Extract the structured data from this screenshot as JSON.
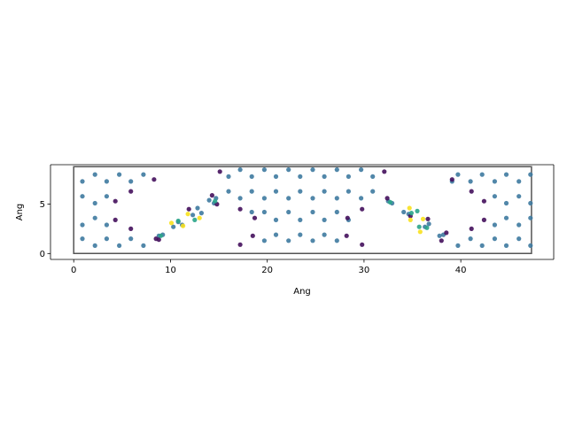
{
  "chart_data": {
    "type": "scatter",
    "title": "",
    "xlabel": "Ang",
    "ylabel": "Ang",
    "xlim": [
      -2.4,
      49.6
    ],
    "ylim": [
      -0.6,
      9.0
    ],
    "x_ticks": [
      0,
      10,
      20,
      30,
      40
    ],
    "y_ticks": [
      0,
      5
    ],
    "grid": false,
    "cell_outline": {
      "corners": [
        [
          0,
          0
        ],
        [
          0,
          8.8
        ],
        [
          47.3,
          8.8
        ],
        [
          47.3,
          0
        ]
      ],
      "color": "#555555"
    },
    "colors": {
      "blue": "#3e7aa0",
      "purple": "#440f5c",
      "teal": "#2aa58a",
      "yellow": "#f8e11e",
      "axis": "#000000"
    },
    "series": [
      {
        "color_key": "blue",
        "points": [
          [
            0.9,
            1.5
          ],
          [
            0.9,
            2.9
          ],
          [
            0.9,
            5.8
          ],
          [
            0.9,
            7.3
          ],
          [
            2.2,
            0.8
          ],
          [
            2.2,
            3.6
          ],
          [
            2.2,
            5.1
          ],
          [
            2.2,
            8.0
          ],
          [
            3.4,
            1.5
          ],
          [
            3.4,
            2.9
          ],
          [
            3.4,
            5.8
          ],
          [
            3.4,
            7.3
          ],
          [
            4.7,
            0.8
          ],
          [
            4.7,
            8.0
          ],
          [
            5.9,
            1.5
          ],
          [
            5.9,
            7.3
          ],
          [
            7.2,
            0.8
          ],
          [
            7.2,
            8.0
          ],
          [
            8.8,
            1.8
          ],
          [
            9.2,
            1.9
          ],
          [
            10.3,
            2.7
          ],
          [
            10.8,
            3.2
          ],
          [
            11.2,
            2.9
          ],
          [
            12.3,
            3.9
          ],
          [
            12.8,
            4.6
          ],
          [
            13.2,
            4.1
          ],
          [
            14.0,
            5.4
          ],
          [
            14.5,
            5.1
          ],
          [
            14.7,
            5.6
          ],
          [
            16.0,
            6.3
          ],
          [
            16.0,
            7.8
          ],
          [
            17.2,
            5.6
          ],
          [
            17.2,
            8.5
          ],
          [
            18.4,
            4.2
          ],
          [
            18.4,
            6.3
          ],
          [
            18.4,
            7.8
          ],
          [
            19.7,
            1.3
          ],
          [
            19.7,
            4.2
          ],
          [
            19.7,
            5.6
          ],
          [
            19.7,
            8.5
          ],
          [
            20.9,
            1.9
          ],
          [
            20.9,
            3.4
          ],
          [
            20.9,
            6.3
          ],
          [
            20.9,
            7.8
          ],
          [
            22.2,
            1.3
          ],
          [
            22.2,
            4.2
          ],
          [
            22.2,
            5.6
          ],
          [
            22.2,
            8.5
          ],
          [
            23.4,
            1.9
          ],
          [
            23.4,
            3.4
          ],
          [
            23.4,
            6.3
          ],
          [
            23.4,
            7.8
          ],
          [
            24.7,
            1.3
          ],
          [
            24.7,
            4.2
          ],
          [
            24.7,
            5.6
          ],
          [
            24.7,
            8.5
          ],
          [
            25.9,
            1.9
          ],
          [
            25.9,
            3.4
          ],
          [
            25.9,
            6.3
          ],
          [
            25.9,
            7.8
          ],
          [
            27.2,
            1.3
          ],
          [
            27.2,
            4.2
          ],
          [
            27.2,
            5.6
          ],
          [
            27.2,
            8.5
          ],
          [
            28.4,
            3.4
          ],
          [
            28.4,
            6.3
          ],
          [
            28.4,
            7.8
          ],
          [
            29.7,
            5.6
          ],
          [
            29.7,
            8.5
          ],
          [
            30.9,
            6.3
          ],
          [
            30.9,
            7.8
          ],
          [
            32.5,
            5.3
          ],
          [
            32.9,
            5.1
          ],
          [
            34.1,
            4.2
          ],
          [
            34.6,
            4.0
          ],
          [
            36.3,
            2.7
          ],
          [
            36.7,
            3.0
          ],
          [
            37.8,
            1.8
          ],
          [
            38.2,
            1.9
          ],
          [
            39.1,
            7.3
          ],
          [
            39.7,
            0.8
          ],
          [
            39.7,
            8.0
          ],
          [
            41.0,
            1.5
          ],
          [
            41.0,
            7.3
          ],
          [
            42.2,
            0.8
          ],
          [
            42.2,
            8.0
          ],
          [
            43.5,
            1.5
          ],
          [
            43.5,
            2.9
          ],
          [
            43.5,
            5.8
          ],
          [
            43.5,
            7.3
          ],
          [
            44.7,
            0.8
          ],
          [
            44.7,
            3.6
          ],
          [
            44.7,
            5.1
          ],
          [
            44.7,
            8.0
          ],
          [
            46.0,
            1.5
          ],
          [
            46.0,
            2.9
          ],
          [
            46.0,
            5.8
          ],
          [
            46.0,
            7.3
          ],
          [
            47.2,
            0.8
          ],
          [
            47.2,
            3.6
          ],
          [
            47.2,
            5.1
          ],
          [
            47.2,
            8.0
          ]
        ]
      },
      {
        "color_key": "purple",
        "points": [
          [
            4.3,
            5.3
          ],
          [
            4.3,
            3.4
          ],
          [
            5.9,
            6.3
          ],
          [
            5.9,
            2.5
          ],
          [
            8.3,
            7.5
          ],
          [
            8.5,
            1.5
          ],
          [
            8.8,
            1.4
          ],
          [
            11.9,
            4.5
          ],
          [
            14.3,
            5.9
          ],
          [
            14.8,
            5.0
          ],
          [
            15.1,
            8.3
          ],
          [
            17.2,
            0.9
          ],
          [
            17.2,
            4.5
          ],
          [
            18.5,
            1.8
          ],
          [
            18.7,
            3.6
          ],
          [
            28.2,
            1.8
          ],
          [
            28.3,
            3.6
          ],
          [
            29.8,
            0.9
          ],
          [
            29.8,
            4.5
          ],
          [
            32.1,
            8.3
          ],
          [
            32.4,
            5.6
          ],
          [
            34.8,
            3.8
          ],
          [
            36.6,
            3.5
          ],
          [
            38.0,
            1.3
          ],
          [
            38.5,
            2.1
          ],
          [
            39.1,
            7.5
          ],
          [
            41.1,
            6.3
          ],
          [
            41.1,
            2.5
          ],
          [
            42.4,
            5.3
          ],
          [
            42.4,
            3.4
          ]
        ]
      },
      {
        "color_key": "teal",
        "points": [
          [
            9.0,
            1.8
          ],
          [
            10.8,
            3.3
          ],
          [
            12.5,
            3.4
          ],
          [
            14.6,
            5.3
          ],
          [
            32.7,
            5.2
          ],
          [
            34.9,
            4.1
          ],
          [
            35.5,
            4.3
          ],
          [
            35.7,
            2.7
          ],
          [
            36.5,
            2.6
          ]
        ]
      },
      {
        "color_key": "yellow",
        "points": [
          [
            10.1,
            3.1
          ],
          [
            11.3,
            2.8
          ],
          [
            11.8,
            4.0
          ],
          [
            13.0,
            3.6
          ],
          [
            34.7,
            4.6
          ],
          [
            34.8,
            3.4
          ],
          [
            35.8,
            2.2
          ],
          [
            36.1,
            3.5
          ]
        ]
      }
    ]
  }
}
